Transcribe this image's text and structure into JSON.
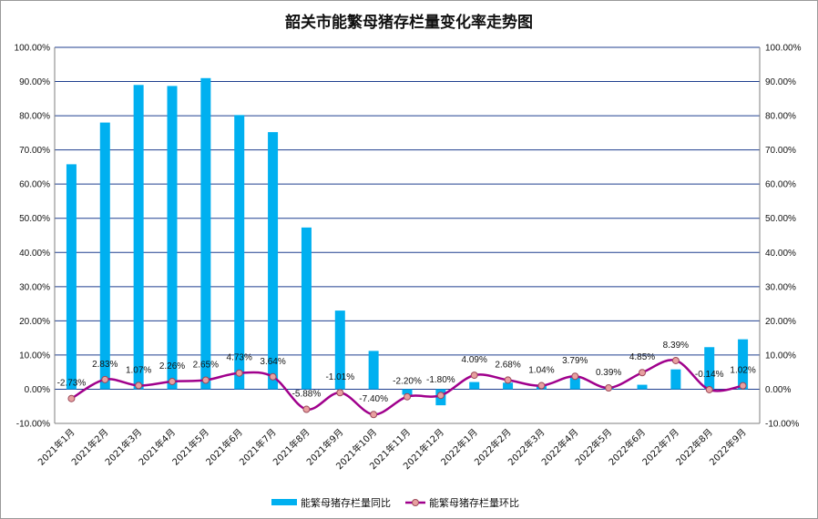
{
  "chart_data": {
    "type": "bar+line",
    "title": "韶关市能繁母猪存栏量变化率走势图",
    "categories": [
      "2021年1月",
      "2021年2月",
      "2021年3月",
      "2021年4月",
      "2021年5月",
      "2021年6月",
      "2021年7月",
      "2021年8月",
      "2021年9月",
      "2021年10月",
      "2021年11月",
      "2021年12月",
      "2022年1月",
      "2022年2月",
      "2022年3月",
      "2022年4月",
      "2022年5月",
      "2022年6月",
      "2022年7月",
      "2022年8月",
      "2022年9月"
    ],
    "series": [
      {
        "name": "能繁母猪存栏量同比",
        "type": "bar",
        "axis": "left",
        "color": "#00b0f0",
        "values": [
          65.8,
          78.0,
          89.0,
          88.7,
          91.0,
          80.2,
          75.2,
          47.3,
          23.0,
          11.2,
          -1.6,
          -4.7,
          2.1,
          1.9,
          1.1,
          3.7,
          0.4,
          1.3,
          5.8,
          12.3,
          14.6
        ]
      },
      {
        "name": "能繁母猪存栏量环比",
        "type": "line",
        "axis": "right",
        "color": "#a0008c",
        "marker_color": "#e8a0a0",
        "values": [
          -2.73,
          2.83,
          1.07,
          2.26,
          2.65,
          4.73,
          3.64,
          -5.88,
          -1.01,
          -7.4,
          -2.2,
          -1.8,
          4.09,
          2.68,
          1.04,
          3.79,
          0.39,
          4.85,
          8.39,
          -0.14,
          1.02
        ],
        "labels": [
          "-2.73%",
          "2.83%",
          "1.07%",
          "2.26%",
          "2.65%",
          "4.73%",
          "3.64%",
          "-5.88%",
          "-1.01%",
          "-7.40%",
          "-2.20%",
          "-1.80%",
          "4.09%",
          "2.68%",
          "1.04%",
          "3.79%",
          "0.39%",
          "4.85%",
          "8.39%",
          "-0.14%",
          "1.02%"
        ]
      }
    ],
    "ylim": [
      -10,
      100
    ],
    "y_ticks": [
      "-10.00%",
      "0.00%",
      "10.00%",
      "20.00%",
      "30.00%",
      "40.00%",
      "50.00%",
      "60.00%",
      "70.00%",
      "80.00%",
      "90.00%",
      "100.00%"
    ],
    "grid": true,
    "legend": "bottom"
  }
}
